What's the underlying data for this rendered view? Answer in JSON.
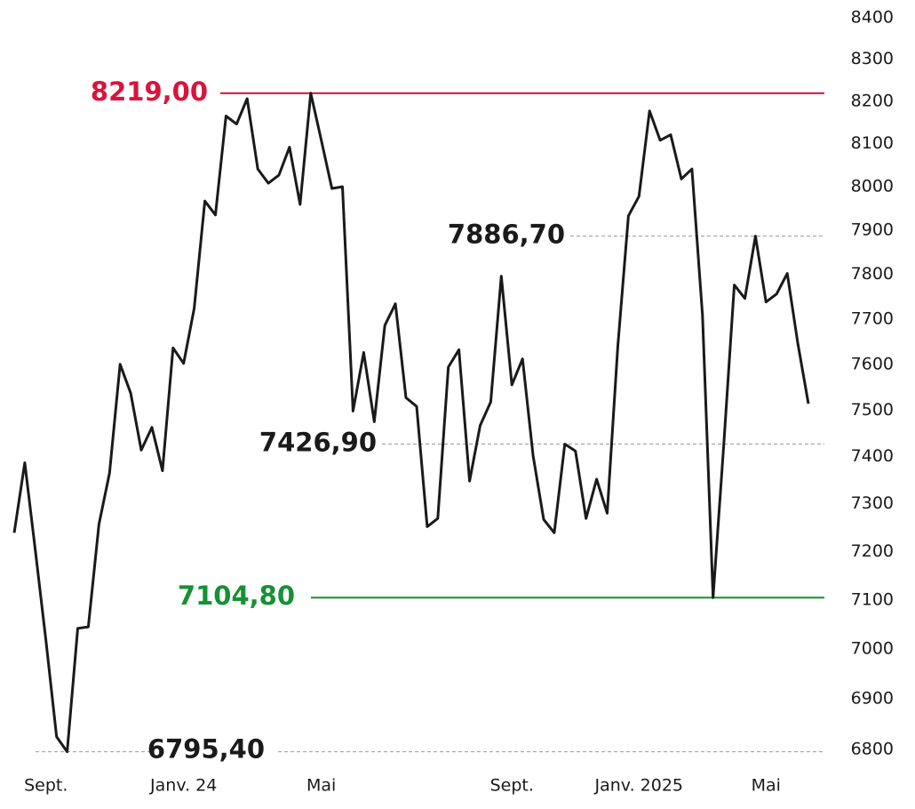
{
  "chart_data": {
    "type": "line",
    "log_scale": true,
    "ylim": [
      6800,
      8400
    ],
    "yticks": [
      6800,
      6900,
      7000,
      7100,
      7200,
      7300,
      7400,
      7500,
      7600,
      7700,
      7800,
      7900,
      8000,
      8100,
      8200,
      8300,
      8400
    ],
    "categories": [
      null,
      null,
      null,
      "Sept.",
      null,
      null,
      null,
      null,
      null,
      null,
      null,
      null,
      null,
      null,
      null,
      null,
      "Janv. 24",
      null,
      null,
      null,
      null,
      null,
      null,
      null,
      null,
      null,
      null,
      null,
      null,
      "Mai",
      null,
      null,
      null,
      null,
      null,
      null,
      null,
      null,
      null,
      null,
      null,
      null,
      null,
      null,
      null,
      null,
      null,
      "Sept.",
      null,
      null,
      null,
      null,
      null,
      null,
      null,
      null,
      null,
      null,
      null,
      "Janv. 2025",
      null,
      null,
      null,
      null,
      null,
      null,
      null,
      null,
      null,
      null,
      null,
      "Mai",
      null,
      null,
      null,
      null
    ],
    "series": [
      {
        "color": "#1a1a1a",
        "values": [
          7239,
          7387,
          7202,
          7016,
          6825,
          6795.4,
          7042,
          7045,
          7257,
          7365,
          7600,
          7537,
          7414,
          7463,
          7370,
          7636,
          7602,
          7724,
          7967,
          7935,
          8165,
          8146,
          8206,
          8041,
          8008,
          8027,
          8092,
          7959,
          8219,
          8108,
          7996,
          8000,
          7498,
          7626,
          7475,
          7686,
          7734,
          7527,
          7508,
          7252,
          7269,
          7594,
          7632,
          7348,
          7467,
          7518,
          7796,
          7555,
          7612,
          7402,
          7267,
          7239,
          7427,
          7412,
          7269,
          7352,
          7280,
          7638,
          7933,
          7978,
          8177,
          8108,
          8121,
          8018,
          8041,
          7708,
          7104.8,
          7422,
          7776,
          7746,
          7886.7,
          7738,
          7756,
          7802,
          7646,
          7514
        ]
      }
    ],
    "annotations": [
      {
        "label": "8219,00",
        "value": 8219.0,
        "color": "#d9143c",
        "style": "solid"
      },
      {
        "label": "7886,70",
        "value": 7886.7,
        "color": "#1a1a1a",
        "style": "dashed"
      },
      {
        "label": "7426,90",
        "value": 7426.9,
        "color": "#1a1a1a",
        "style": "dashed"
      },
      {
        "label": "7104,80",
        "value": 7104.8,
        "color": "#169134",
        "style": "solid"
      },
      {
        "label": "6795,40",
        "value": 6795.4,
        "color": "#1a1a1a",
        "style": "dashed"
      }
    ]
  }
}
